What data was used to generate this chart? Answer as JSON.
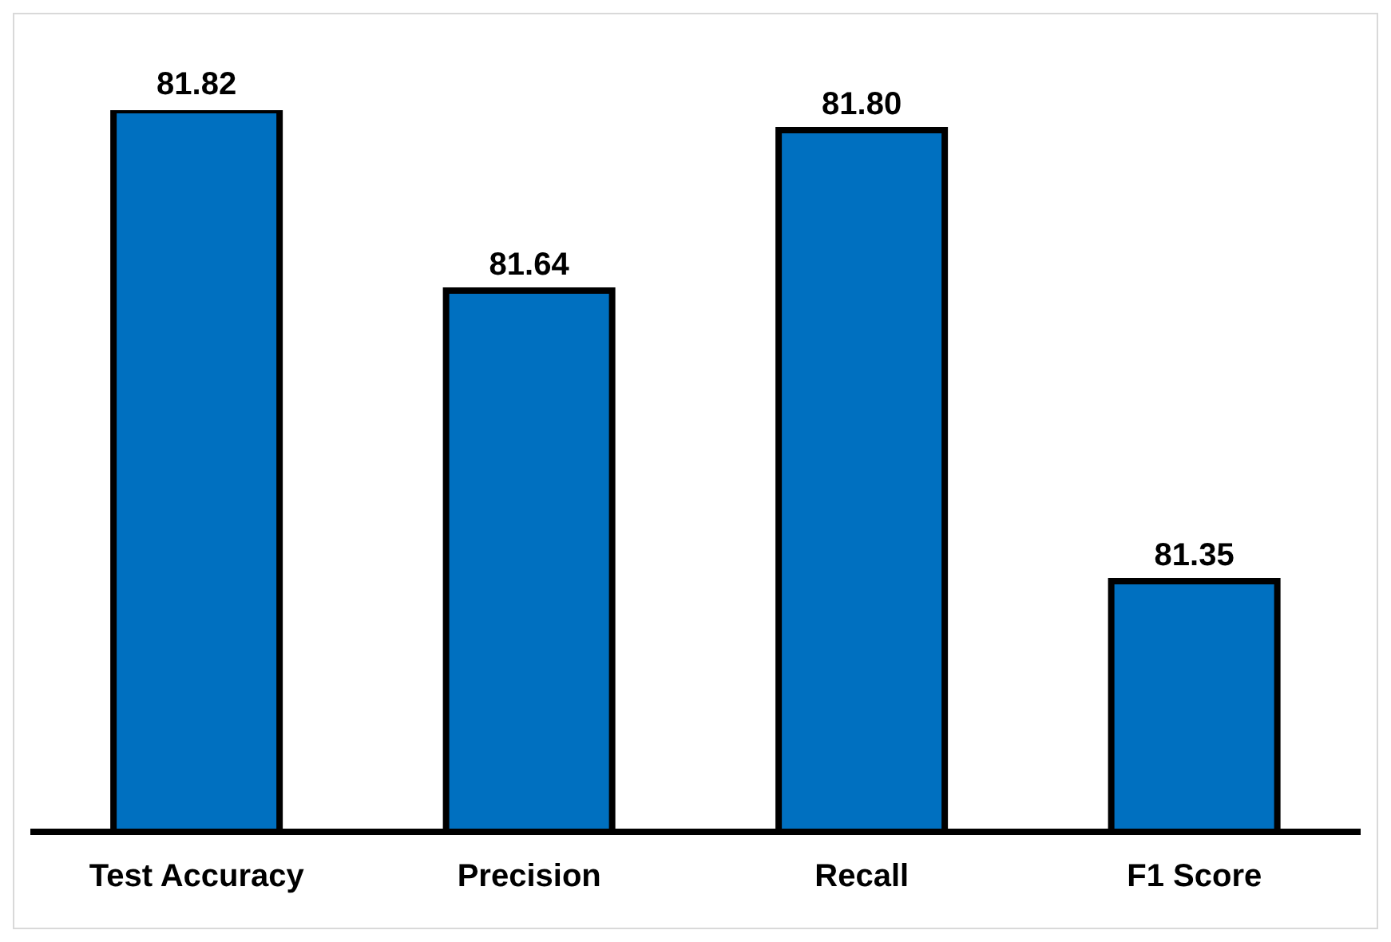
{
  "chart_data": {
    "type": "bar",
    "categories": [
      "Test Accuracy",
      "Precision",
      "Recall",
      "F1 Score"
    ],
    "series": [
      {
        "color": "#0070c0",
        "values": [
          81.82,
          81.64,
          81.8,
          81.35
        ],
        "value_labels": [
          "81.82",
          "81.64",
          "81.80",
          "81.35"
        ]
      }
    ],
    "ylim": [
      81.1,
      81.82
    ],
    "grid": false,
    "legend": false,
    "tick_labels": "x"
  }
}
